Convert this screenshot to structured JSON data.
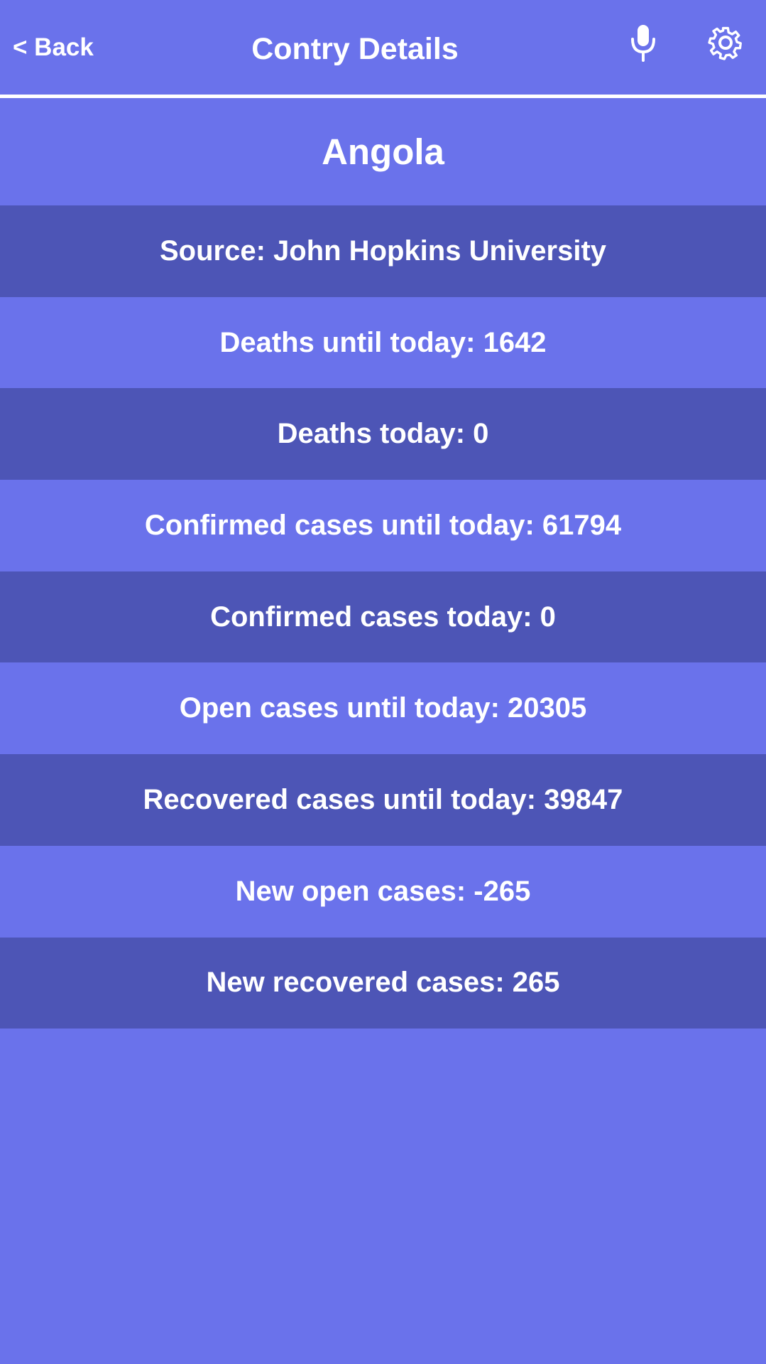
{
  "header": {
    "back_label": "< Back",
    "title": "Contry Details",
    "mic_icon": "microphone-icon",
    "settings_icon": "gear-icon"
  },
  "country": {
    "name": "Angola"
  },
  "stats": [
    "Source: John Hopkins University",
    "Deaths until today: 1642",
    "Deaths today: 0",
    "Confirmed cases until today: 61794",
    "Confirmed cases today: 0",
    "Open cases until today: 20305",
    "Recovered cases until today: 39847",
    "New open cases: -265",
    "New recovered cases: 265"
  ],
  "colors": {
    "background": "#6a72eb",
    "row_dark": "#4d55b6",
    "text": "#ffffff"
  }
}
